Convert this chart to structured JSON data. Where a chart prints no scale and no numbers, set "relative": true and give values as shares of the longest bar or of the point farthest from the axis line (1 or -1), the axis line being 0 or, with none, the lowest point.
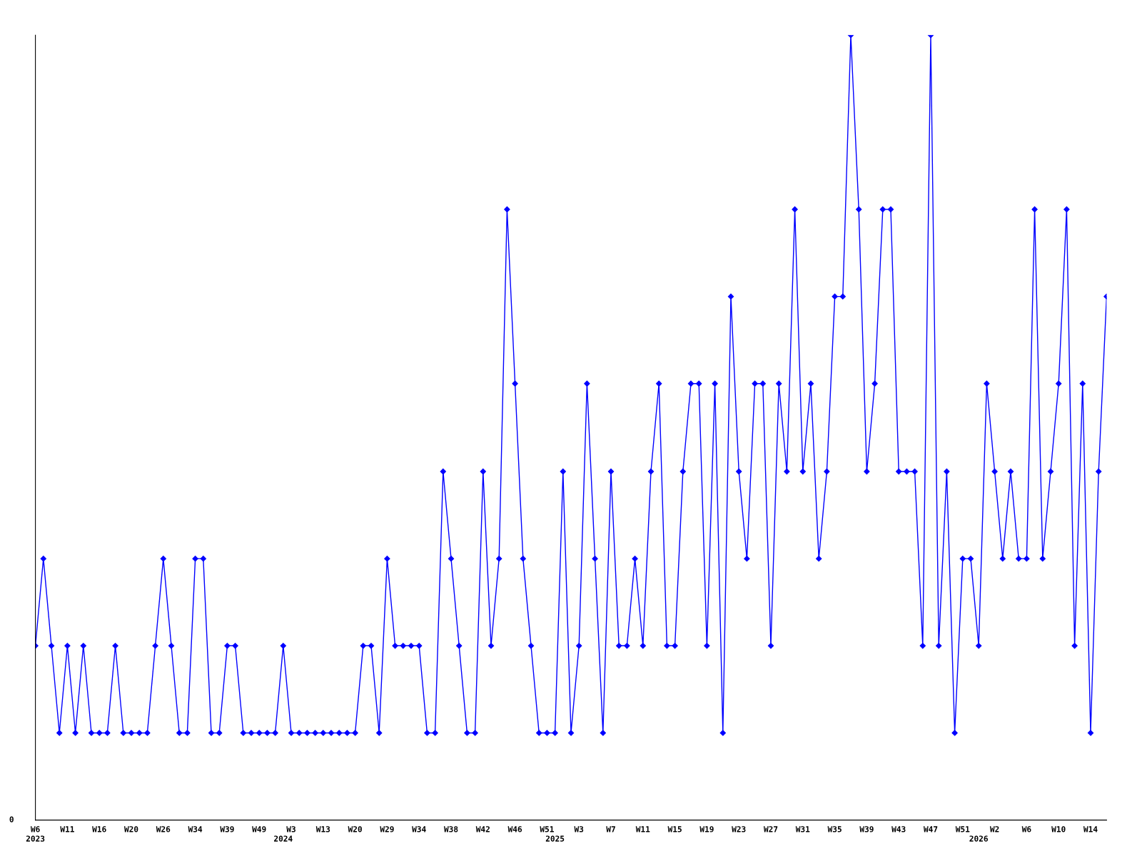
{
  "chart_data": {
    "type": "line",
    "relative": true,
    "marker": "diamond",
    "line_style": "solid",
    "grid": false,
    "legend": false,
    "annotations": [
      "0"
    ],
    "categories": [
      "W6\n2023",
      null,
      null,
      null,
      "W11",
      null,
      null,
      null,
      "W16",
      null,
      null,
      null,
      "W20",
      null,
      null,
      null,
      "W26",
      null,
      null,
      null,
      "W34",
      null,
      null,
      null,
      "W39",
      null,
      null,
      null,
      "W49",
      null,
      null,
      "\n2024",
      "W3",
      null,
      null,
      null,
      "W13",
      null,
      null,
      null,
      "W20",
      null,
      null,
      null,
      "W29",
      null,
      null,
      null,
      "W34",
      null,
      null,
      null,
      "W38",
      null,
      null,
      null,
      "W42",
      null,
      null,
      null,
      "W46",
      null,
      null,
      null,
      "W51",
      "\n2025",
      null,
      null,
      "W3",
      null,
      null,
      null,
      "W7",
      null,
      null,
      null,
      "W11",
      null,
      null,
      null,
      "W15",
      null,
      null,
      null,
      "W19",
      null,
      null,
      null,
      "W23",
      null,
      null,
      null,
      "W27",
      null,
      null,
      null,
      "W31",
      null,
      null,
      null,
      "W35",
      null,
      null,
      null,
      "W39",
      null,
      null,
      null,
      "W43",
      null,
      null,
      null,
      "W47",
      null,
      null,
      null,
      "W51",
      null,
      "\n2026",
      null,
      "W2",
      null,
      null,
      null,
      "W6",
      null,
      null,
      null,
      "W10",
      null,
      null,
      null,
      "W14",
      null,
      null
    ],
    "series": [
      {
        "color": "#0000ff",
        "values": [
          0.222,
          0.333,
          0.222,
          0.111,
          0.222,
          0.111,
          0.222,
          0.111,
          0.111,
          0.111,
          0.222,
          0.111,
          0.111,
          0.111,
          0.111,
          0.222,
          0.333,
          0.222,
          0.111,
          0.111,
          0.333,
          0.333,
          0.111,
          0.111,
          0.222,
          0.222,
          0.111,
          0.111,
          0.111,
          0.111,
          0.111,
          0.222,
          0.111,
          0.111,
          0.111,
          0.111,
          0.111,
          0.111,
          0.111,
          0.111,
          0.111,
          0.222,
          0.222,
          0.111,
          0.333,
          0.222,
          0.222,
          0.222,
          0.222,
          0.111,
          0.111,
          0.444,
          0.333,
          0.222,
          0.111,
          0.111,
          0.444,
          0.222,
          0.333,
          0.778,
          0.556,
          0.333,
          0.222,
          0.111,
          0.111,
          0.111,
          0.444,
          0.111,
          0.222,
          0.556,
          0.333,
          0.111,
          0.444,
          0.222,
          0.222,
          0.333,
          0.222,
          0.444,
          0.556,
          0.222,
          0.222,
          0.444,
          0.556,
          0.556,
          0.222,
          0.556,
          0.111,
          0.667,
          0.444,
          0.333,
          0.556,
          0.556,
          0.222,
          0.556,
          0.444,
          0.778,
          0.444,
          0.556,
          0.333,
          0.444,
          0.667,
          0.667,
          1,
          0.778,
          0.444,
          0.556,
          0.778,
          0.778,
          0.444,
          0.444,
          0.444,
          0.222,
          1,
          0.222,
          0.444,
          0.111,
          0.333,
          0.333,
          0.222,
          0.556,
          0.444,
          0.333,
          0.444,
          0.333,
          0.333,
          0.778,
          0.333,
          0.444,
          0.556,
          0.778,
          0.222,
          0.556,
          0.111,
          0.444,
          0.667
        ]
      }
    ]
  }
}
